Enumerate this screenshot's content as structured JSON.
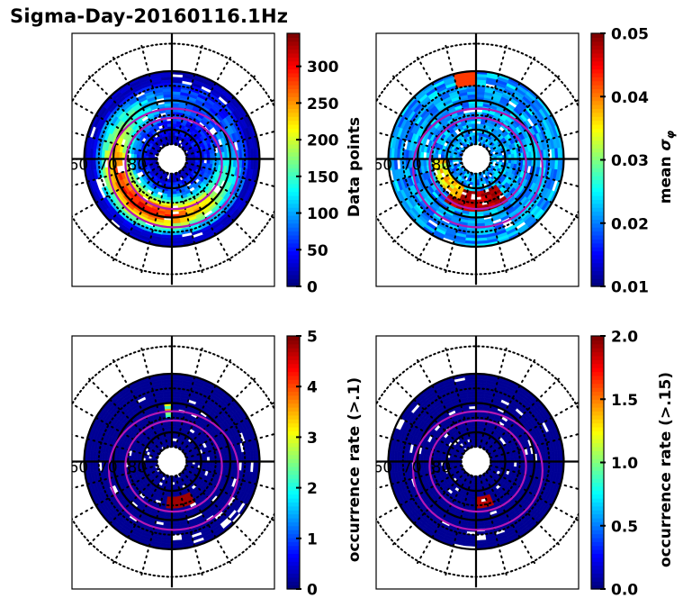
{
  "title": "Sigma-Day-20160116.1Hz",
  "colors": {
    "contour": "#b417b4",
    "grid": "#000000",
    "background": "#ffffff"
  },
  "chart_data": [
    {
      "type": "heatmap",
      "projection": "polar (magnetic latitude / local time)",
      "position": "top-left",
      "lat_labels": [
        "60",
        "70",
        "80"
      ],
      "colorbar": {
        "label": "Data points",
        "colormap": "jet",
        "range": [
          0,
          345
        ],
        "ticks": [
          0,
          50,
          100,
          150,
          200,
          250,
          300
        ],
        "tick_labels": [
          "0",
          "50",
          "100",
          "150",
          "200",
          "250",
          "300"
        ]
      },
      "pattern": "annular ring of bins; highest counts (250-340) near dusk/noon sector at ~65-70 deg, lower counts (0-100) at outer and inner edges"
    },
    {
      "type": "heatmap",
      "projection": "polar (magnetic latitude / local time)",
      "position": "top-right",
      "lat_labels": [
        "60",
        "70",
        "80"
      ],
      "colorbar": {
        "label": "mean σφ",
        "colormap": "jet",
        "range": [
          0.01,
          0.05
        ],
        "ticks": [
          0.01,
          0.02,
          0.03,
          0.04,
          0.05
        ],
        "tick_labels": [
          "0.01",
          "0.02",
          "0.03",
          "0.04",
          "0.05"
        ]
      },
      "pattern": "mostly 0.02-0.03; elevated 0.04-0.05 patches near noon at ~75 deg and near midnight at ~62 deg"
    },
    {
      "type": "heatmap",
      "projection": "polar (magnetic latitude / local time)",
      "position": "bottom-left",
      "lat_labels": [
        "60",
        "70",
        "80"
      ],
      "colorbar": {
        "label": "occurrence rate (>.1)",
        "colormap": "jet",
        "range": [
          0,
          5
        ],
        "ticks": [
          0,
          1,
          2,
          3,
          4,
          5
        ],
        "tick_labels": [
          "0",
          "1",
          "2",
          "3",
          "4",
          "5"
        ]
      },
      "pattern": "mostly ~0; isolated bins up to 5 near noon at ~75 deg and near dawn/dusk at ~78 deg"
    },
    {
      "type": "heatmap",
      "projection": "polar (magnetic latitude / local time)",
      "position": "bottom-right",
      "lat_labels": [
        "60",
        "70",
        "80"
      ],
      "colorbar": {
        "label": "occurrence rate (>.15)",
        "colormap": "jet",
        "range": [
          0,
          2
        ],
        "ticks": [
          0,
          0.5,
          1,
          1.5,
          2
        ],
        "tick_labels": [
          "0.0",
          "0.5",
          "1.0",
          "1.5",
          "2.0"
        ]
      },
      "pattern": "nearly all ~0; a few bins up to 2 near noon at ~75 deg"
    }
  ]
}
